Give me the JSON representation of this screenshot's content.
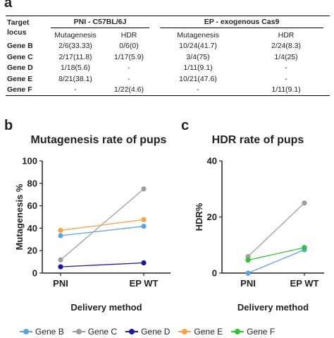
{
  "panels": {
    "a": "a",
    "b": "b",
    "c": "c"
  },
  "table": {
    "locus_header": [
      "Target",
      "locus"
    ],
    "groups": [
      "PNI - C57BL/6J",
      "EP - exogenous Cas9"
    ],
    "subheaders": [
      "Mutagenesis",
      "HDR",
      "Mutagenesis",
      "HDR"
    ],
    "rows": [
      {
        "gene": "Gene B",
        "cells": [
          "2/6(33.33)",
          "0/6(0)",
          "10/24(41.7)",
          "2/24(8.3)"
        ]
      },
      {
        "gene": "Gene C",
        "cells": [
          "2/17(11.8)",
          "1/17(5.9)",
          "3/4(75)",
          "1/4(25)"
        ]
      },
      {
        "gene": "Gene D",
        "cells": [
          "1/18(5.6)",
          "-",
          "1/11(9.1)",
          "-"
        ]
      },
      {
        "gene": "Gene E",
        "cells": [
          "8/21(38.1)",
          "-",
          "10/21(47.6)",
          "-"
        ]
      },
      {
        "gene": "Gene F",
        "cells": [
          "-",
          "1/22(4.6)",
          "-",
          "1/11(9.1)"
        ]
      }
    ]
  },
  "colors": {
    "Gene B": "#5aa3e6",
    "Gene C": "#9e9e9e",
    "Gene D": "#1a1aa6",
    "Gene E": "#f5a447",
    "Gene F": "#2ec42e"
  },
  "chart_data": [
    {
      "type": "line",
      "title": "Mutagenesis rate of pups",
      "xlabel": "Delivery method",
      "ylabel": "Mutagenesis %",
      "categories": [
        "PNI",
        "EP WT"
      ],
      "ylim": [
        0,
        100
      ],
      "yticks": [
        0,
        20,
        40,
        60,
        80,
        100
      ],
      "grid": false,
      "series": [
        {
          "name": "Gene B",
          "values": [
            33.33,
            41.7
          ]
        },
        {
          "name": "Gene C",
          "values": [
            11.8,
            75
          ]
        },
        {
          "name": "Gene D",
          "values": [
            5.6,
            9.1
          ]
        },
        {
          "name": "Gene E",
          "values": [
            38.1,
            47.6
          ]
        }
      ]
    },
    {
      "type": "line",
      "title": "HDR rate of pups",
      "xlabel": "Delivery method",
      "ylabel": "HDR%",
      "categories": [
        "PNI",
        "EP WT"
      ],
      "ylim": [
        0,
        40
      ],
      "yticks": [
        0,
        20,
        40
      ],
      "grid": false,
      "series": [
        {
          "name": "Gene B",
          "values": [
            0,
            8.3
          ]
        },
        {
          "name": "Gene C",
          "values": [
            5.9,
            25
          ]
        },
        {
          "name": "Gene F",
          "values": [
            4.6,
            9.1
          ]
        }
      ]
    }
  ],
  "legend": [
    "Gene B",
    "Gene C",
    "Gene D",
    "Gene E",
    "Gene F"
  ]
}
